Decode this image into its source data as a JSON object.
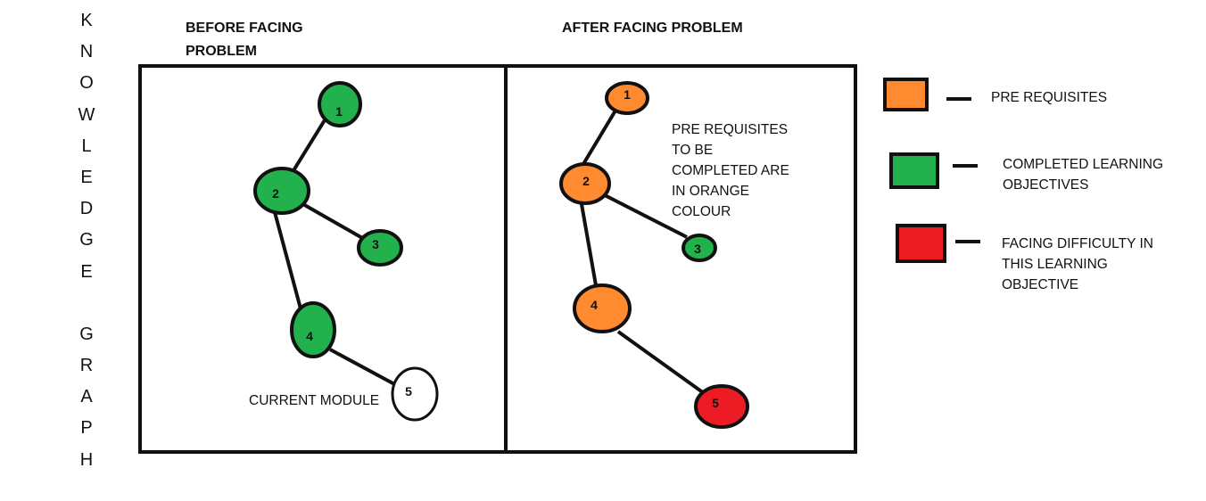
{
  "vertical_title_letters": [
    "K",
    "N",
    "O",
    "W",
    "L",
    "E",
    "D",
    "G",
    "E",
    "",
    "G",
    "R",
    "A",
    "P",
    "H"
  ],
  "panels": {
    "before": {
      "heading_line1": "BEFORE FACING",
      "heading_line2": "PROBLEM"
    },
    "after": {
      "heading": "AFTER FACING PROBLEM"
    }
  },
  "colors": {
    "orange": "#ff8a2f",
    "green": "#22b14c",
    "red": "#ed1c24",
    "white": "#ffffff",
    "stroke": "#111111"
  },
  "before_graph": {
    "nodes": [
      {
        "id": "1",
        "label": "1",
        "status": "completed"
      },
      {
        "id": "2",
        "label": "2",
        "status": "completed"
      },
      {
        "id": "3",
        "label": "3",
        "status": "completed"
      },
      {
        "id": "4",
        "label": "4",
        "status": "completed"
      },
      {
        "id": "5",
        "label": "5",
        "status": "current"
      }
    ],
    "edges": [
      [
        "1",
        "2"
      ],
      [
        "2",
        "3"
      ],
      [
        "2",
        "4"
      ],
      [
        "4",
        "5"
      ]
    ],
    "current_module_label": "CURRENT MODULE"
  },
  "after_graph": {
    "nodes": [
      {
        "id": "1",
        "label": "1",
        "status": "prerequisite"
      },
      {
        "id": "2",
        "label": "2",
        "status": "prerequisite"
      },
      {
        "id": "3",
        "label": "3",
        "status": "completed"
      },
      {
        "id": "4",
        "label": "4",
        "status": "prerequisite"
      },
      {
        "id": "5",
        "label": "5",
        "status": "difficulty"
      }
    ],
    "edges": [
      [
        "1",
        "2"
      ],
      [
        "2",
        "3"
      ],
      [
        "2",
        "4"
      ],
      [
        "4",
        "5"
      ]
    ],
    "note_lines": [
      "PRE REQUISITES",
      "TO BE",
      "COMPLETED ARE",
      "IN ORANGE",
      "COLOUR"
    ]
  },
  "legend": [
    {
      "color": "#ff8a2f",
      "lines": [
        "PRE REQUISITES"
      ]
    },
    {
      "color": "#22b14c",
      "lines": [
        "COMPLETED LEARNING",
        "OBJECTIVES"
      ]
    },
    {
      "color": "#ed1c24",
      "lines": [
        "FACING DIFFICULTY IN",
        "THIS LEARNING",
        "OBJECTIVE"
      ]
    }
  ]
}
